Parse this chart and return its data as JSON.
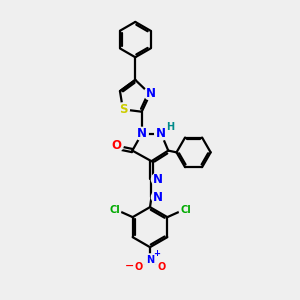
{
  "bg_color": "#efefef",
  "bond_color": "#000000",
  "bond_width": 1.6,
  "atom_colors": {
    "N": "#0000ff",
    "O": "#ff0000",
    "S": "#cccc00",
    "Cl": "#00aa00",
    "H": "#008b8b",
    "C": "#000000"
  },
  "font_size_atom": 8.5,
  "font_size_small": 7.0,
  "font_size_charge": 8.0
}
